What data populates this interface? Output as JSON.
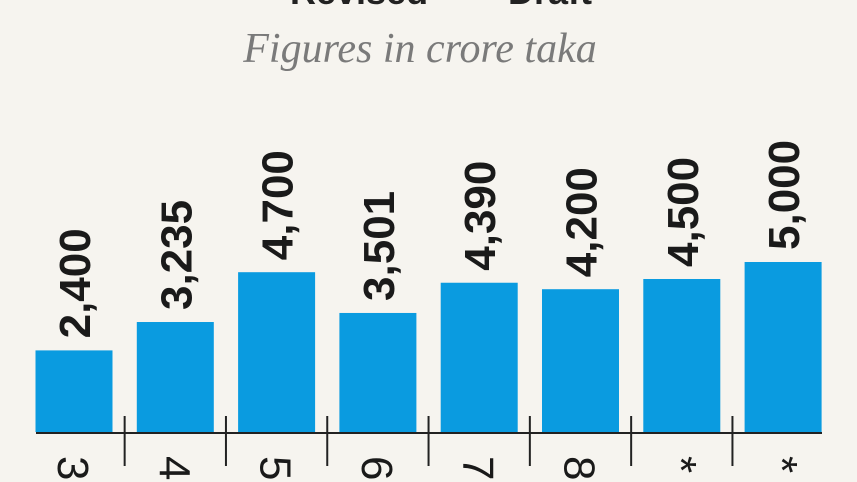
{
  "chart_data": {
    "type": "bar",
    "legend": [
      "Revised",
      "Draft"
    ],
    "subtitle": "Figures in crore taka",
    "categories": [
      "3",
      "4",
      "5",
      "6",
      "7",
      "8",
      "*",
      "*"
    ],
    "values": [
      2400,
      3235,
      4700,
      3501,
      4390,
      4200,
      4500,
      5000
    ],
    "value_labels": [
      "2,400",
      "3,235",
      "4,700",
      "3,501",
      "4,390",
      "4,200",
      "4,500",
      "5,000"
    ],
    "color": "#0a9be0"
  }
}
